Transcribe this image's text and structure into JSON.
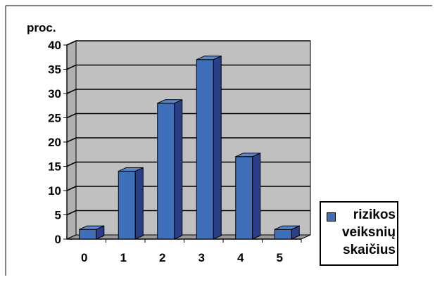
{
  "chart_data": {
    "type": "bar",
    "title": "",
    "ylabel": "proc.",
    "xlabel": "",
    "categories": [
      "0",
      "1",
      "2",
      "3",
      "4",
      "5"
    ],
    "series": [
      {
        "name": "rizikos veiksnių skaičius",
        "values": [
          2,
          14,
          28,
          37,
          17,
          2
        ]
      }
    ],
    "ylim": [
      0,
      40
    ],
    "yticks": [
      "0",
      "5",
      "10",
      "15",
      "20",
      "25",
      "30",
      "35",
      "40"
    ],
    "grid": true,
    "legend_position": "bottom-right",
    "colors": {
      "bar_front": "#3f6fb8",
      "bar_side": "#2a3f88",
      "bar_top": "#5a86cc",
      "plot_back": "#c0c0c0",
      "plot_floor": "#9a9a9a",
      "grid": "#000000"
    }
  },
  "legend": {
    "label": "rizikos\nveiksnių\nskaičius"
  }
}
